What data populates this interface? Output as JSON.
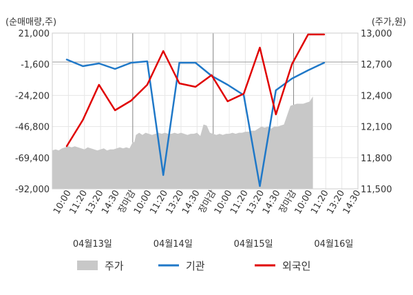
{
  "chart_data": {
    "type": "line",
    "left_axis_title": "(순매매량,주)",
    "right_axis_title": "(주가,원)",
    "left_ticks": [
      "21,000",
      "-1,600",
      "-24,200",
      "-46,800",
      "-69,400",
      "-92,000"
    ],
    "left_ylim": [
      -92000,
      21000
    ],
    "right_ticks": [
      "13,000",
      "12,700",
      "12,400",
      "12,100",
      "11,800",
      "11,500"
    ],
    "right_ylim": [
      11500,
      13000
    ],
    "x_tick_labels": [
      "10:00",
      "11:20",
      "13:20",
      "14:30",
      "장마감",
      "10:00",
      "11:20",
      "13:20",
      "14:30",
      "장마감",
      "10:00",
      "11:20",
      "13:20",
      "14:30",
      "장마감",
      "10:00",
      "11:20",
      "13:20",
      "14:30"
    ],
    "x_tick_colors": [
      "#333333",
      "#333333",
      "#333333",
      "#333333",
      "#e00000",
      "#333333",
      "#333333",
      "#333333",
      "#333333",
      "#e00000",
      "#333333",
      "#333333",
      "#333333",
      "#333333",
      "#e00000",
      "#333333",
      "#333333",
      "#333333",
      "#333333"
    ],
    "dates": [
      "04월13일",
      "04월14일",
      "04월15일",
      "04월16일"
    ],
    "grid": true,
    "legend_position": "bottom",
    "series": [
      {
        "name": "주가",
        "kind": "area",
        "axis": "right",
        "color": "#c8c8c8",
        "x": [
          0,
          0.2,
          0.4,
          0.6,
          0.8,
          1.0,
          1.2,
          1.4,
          1.6,
          1.8,
          2.0,
          2.2,
          2.4,
          2.6,
          2.8,
          3.0,
          3.2,
          3.4,
          3.6,
          3.8,
          4.0,
          4.2,
          4.4,
          4.6,
          4.8,
          5.0,
          5.1,
          5.2,
          5.4,
          5.6,
          5.8,
          6.0,
          6.2,
          6.4,
          6.6,
          6.8,
          7.0,
          7.2,
          7.4,
          7.6,
          7.8,
          8.0,
          8.2,
          8.4,
          8.6,
          8.8,
          9.0,
          9.2,
          9.4,
          9.6,
          9.8,
          10.0,
          10.2,
          10.4,
          10.6,
          10.8,
          11.0,
          11.2,
          11.4,
          11.6,
          11.8,
          12.0,
          12.2,
          12.4,
          12.6,
          12.8,
          13.0,
          13.2,
          13.4,
          13.6,
          13.8,
          14.0,
          14.2,
          14.4,
          14.6,
          14.8,
          15.0,
          15.2,
          15.4,
          15.6,
          15.8,
          16.0,
          16.2
        ],
        "values": [
          11870,
          11880,
          11870,
          11890,
          11900,
          11910,
          11900,
          11910,
          11900,
          11890,
          11880,
          11900,
          11890,
          11880,
          11870,
          11880,
          11890,
          11870,
          11880,
          11880,
          11890,
          11900,
          11890,
          11900,
          11890,
          11950,
          11950,
          12020,
          12040,
          12020,
          12040,
          12030,
          12020,
          12030,
          12040,
          12030,
          12040,
          12030,
          12030,
          12040,
          12030,
          12040,
          12030,
          12020,
          12030,
          12030,
          12040,
          12010,
          12120,
          12110,
          12040,
          12030,
          12020,
          12030,
          12020,
          12030,
          12030,
          12040,
          12030,
          12040,
          12040,
          12050,
          12050,
          12060,
          12060,
          12080,
          12100,
          12090,
          12100,
          12080,
          12100,
          12100,
          12110,
          12120,
          12210,
          12300,
          12310,
          12320,
          12320,
          12320,
          12330,
          12340,
          12390
        ]
      },
      {
        "name": "기관",
        "kind": "line",
        "axis": "left",
        "color": "#1f78c8",
        "x": [
          0.9,
          1.9,
          2.9,
          3.9,
          4.9,
          5.9,
          6.9,
          7.9,
          8.9,
          9.9,
          10.9,
          11.9,
          12.9,
          13.9,
          14.9,
          15.9,
          16.9
        ],
        "values": [
          1800,
          -3000,
          -1000,
          -5000,
          -500,
          500,
          -82000,
          -500,
          -500,
          -10000,
          -16500,
          -24000,
          -90000,
          -20500,
          -12000,
          -6000,
          -500
        ]
      },
      {
        "name": "외국인",
        "kind": "line",
        "axis": "left",
        "color": "#e00000",
        "x": [
          0.9,
          1.9,
          2.9,
          3.9,
          4.9,
          5.9,
          6.9,
          7.9,
          8.9,
          9.9,
          10.9,
          11.9,
          12.9,
          13.9,
          14.9,
          15.9,
          16.9
        ],
        "values": [
          -61000,
          -42000,
          -16500,
          -35000,
          -28000,
          -16500,
          8000,
          -15500,
          -18000,
          -9500,
          -28500,
          -23000,
          10500,
          -38000,
          -1500,
          20000,
          20000
        ]
      }
    ]
  }
}
